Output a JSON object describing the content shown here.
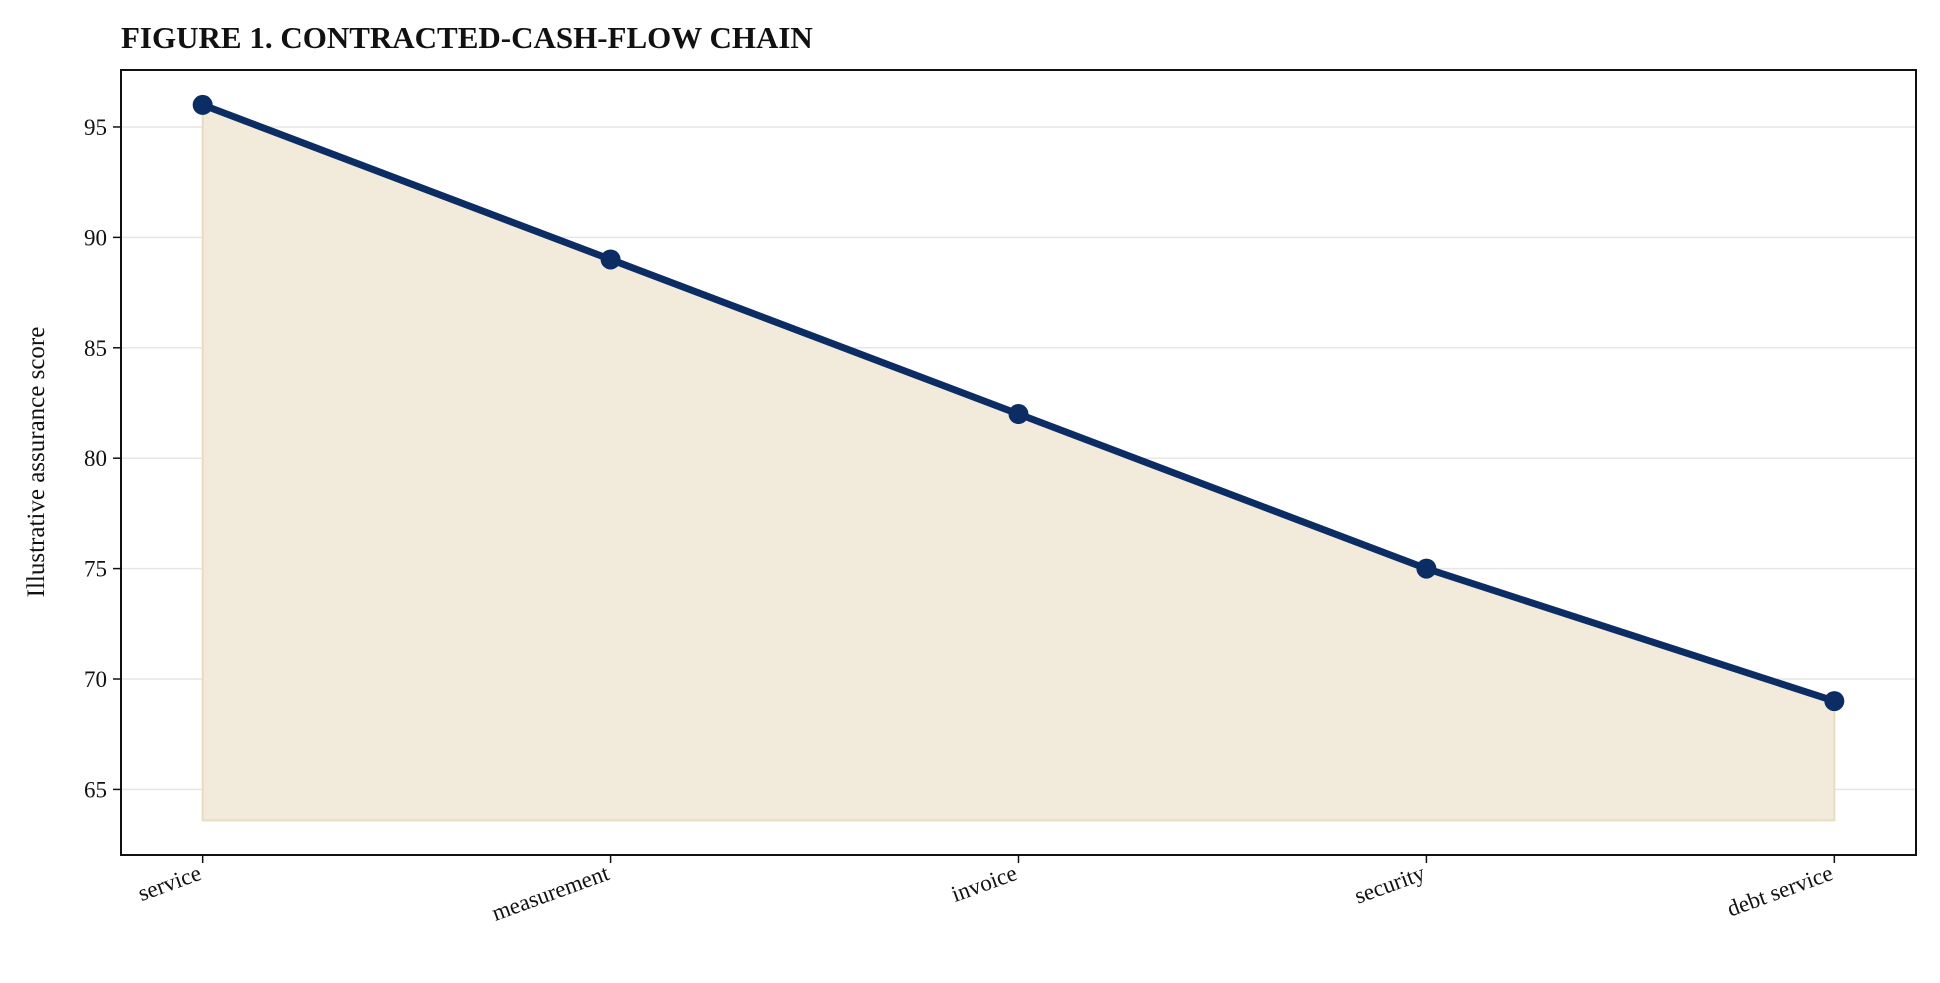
{
  "chart_data": {
    "type": "line",
    "title": "FIGURE 1. CONTRACTED-CASH-FLOW CHAIN",
    "y_label": "Illustrative assurance score",
    "categories": [
      "service",
      "measurement",
      "invoice",
      "security",
      "debt service"
    ],
    "series": [
      {
        "name": "Illustrative assurance score",
        "color": "#0b2d63",
        "values": [
          96,
          89,
          82,
          75,
          69
        ]
      }
    ],
    "fill_color": "#f2eadb",
    "fill_to": 63.6,
    "ylim": [
      62.03,
      97.58
    ],
    "yticks": [
      65,
      70,
      75,
      80,
      85,
      90,
      95
    ],
    "grid": true
  }
}
